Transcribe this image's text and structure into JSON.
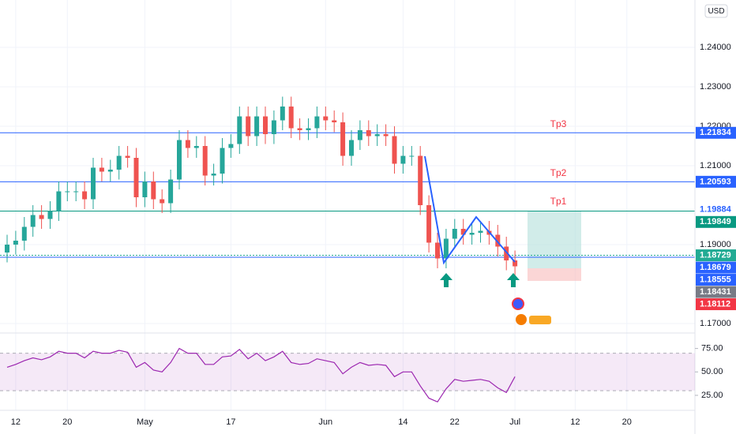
{
  "chart_data": {
    "type": "candlestick",
    "currency": "USD",
    "categories": [
      null,
      "12",
      null,
      null,
      null,
      null,
      null,
      "20",
      null,
      null,
      null,
      null,
      null,
      null,
      null,
      null,
      "May",
      null,
      null,
      null,
      null,
      null,
      null,
      null,
      null,
      null,
      "17",
      null,
      null,
      null,
      null,
      null,
      null,
      null,
      null,
      null,
      null,
      "Jun",
      null,
      null,
      null,
      null,
      null,
      null,
      null,
      null,
      "14",
      null,
      null,
      null,
      null,
      null,
      "22",
      null,
      null,
      null,
      null,
      null,
      null,
      "Jul",
      null,
      null,
      null,
      null,
      null,
      null,
      "12",
      null,
      null,
      null,
      null,
      null,
      "20",
      null,
      null,
      null,
      null,
      null
    ],
    "open": [
      1.188,
      1.19,
      1.191,
      1.1945,
      1.1975,
      1.1965,
      1.1985,
      1.2035,
      1.2035,
      1.2035,
      1.2015,
      1.2095,
      1.2085,
      1.209,
      1.2125,
      1.212,
      1.202,
      1.206,
      1.2015,
      1.2005,
      1.2065,
      1.2165,
      1.2145,
      1.215,
      1.2075,
      1.208,
      1.2145,
      1.2155,
      1.2225,
      1.2175,
      1.2225,
      1.218,
      1.2215,
      1.225,
      1.2195,
      1.219,
      1.2195,
      1.2225,
      1.2215,
      1.221,
      1.2125,
      1.2165,
      1.219,
      1.2175,
      1.218,
      1.2175,
      1.2105,
      1.2125,
      1.2125,
      1.2,
      1.1905,
      1.1865,
      1.1915,
      1.194,
      1.1925,
      1.193,
      1.1935,
      1.1925,
      1.1895,
      1.186,
      null,
      null,
      null,
      null,
      null,
      null,
      null,
      null,
      null,
      null,
      null,
      null,
      null,
      null,
      null,
      null,
      null,
      null
    ],
    "high": [
      1.1925,
      1.1935,
      1.197,
      1.2,
      1.2,
      1.201,
      1.206,
      1.206,
      1.206,
      1.206,
      1.212,
      1.212,
      1.2115,
      1.215,
      1.215,
      1.2145,
      1.2085,
      1.2085,
      1.204,
      1.209,
      1.219,
      1.219,
      1.2175,
      1.2175,
      1.2105,
      1.217,
      1.218,
      1.225,
      1.225,
      1.225,
      1.225,
      1.224,
      1.2275,
      1.2275,
      1.222,
      1.222,
      1.225,
      1.225,
      1.224,
      1.2235,
      1.219,
      1.2215,
      1.2215,
      1.2205,
      1.2205,
      1.22,
      1.215,
      1.215,
      1.215,
      1.2025,
      1.193,
      1.194,
      1.1965,
      1.1965,
      1.1955,
      1.196,
      1.196,
      1.195,
      1.192,
      1.1885,
      null,
      null,
      null,
      null,
      null,
      null,
      null,
      null,
      null,
      null,
      null,
      null,
      null,
      null,
      null,
      null,
      null,
      null
    ],
    "low": [
      1.1855,
      1.1875,
      1.1885,
      1.192,
      1.194,
      1.194,
      1.196,
      1.201,
      1.201,
      1.199,
      1.199,
      1.206,
      1.206,
      1.2065,
      1.2095,
      1.1995,
      1.1995,
      1.199,
      1.198,
      1.198,
      1.204,
      1.212,
      1.212,
      1.205,
      1.205,
      1.2055,
      1.212,
      1.213,
      1.215,
      1.215,
      1.2155,
      1.2155,
      1.219,
      1.217,
      1.2165,
      1.2165,
      1.217,
      1.219,
      1.2185,
      1.21,
      1.21,
      1.214,
      1.215,
      1.215,
      1.215,
      1.208,
      1.208,
      1.21,
      1.1975,
      1.188,
      1.184,
      1.184,
      1.189,
      1.19,
      1.19,
      1.1905,
      1.19,
      1.187,
      1.1835,
      1.182,
      null,
      null,
      null,
      null,
      null,
      null,
      null,
      null,
      null,
      null,
      null,
      null,
      null,
      null,
      null,
      null,
      null,
      null
    ],
    "close": [
      1.19,
      1.191,
      1.1945,
      1.1975,
      1.1965,
      1.1985,
      1.2035,
      1.2035,
      1.2035,
      1.2015,
      1.2095,
      1.2085,
      1.209,
      1.2125,
      1.212,
      1.202,
      1.206,
      1.2015,
      1.2005,
      1.2065,
      1.2165,
      1.2145,
      1.215,
      1.2075,
      1.208,
      1.2145,
      1.2155,
      1.2225,
      1.2175,
      1.2225,
      1.218,
      1.2215,
      1.225,
      1.2195,
      1.219,
      1.2195,
      1.2225,
      1.2215,
      1.221,
      1.2125,
      1.2165,
      1.219,
      1.2175,
      1.218,
      1.2175,
      1.2105,
      1.2125,
      1.2125,
      1.2,
      1.1905,
      1.1865,
      1.1915,
      1.194,
      1.1925,
      1.193,
      1.1935,
      1.1925,
      1.1895,
      1.186,
      1.1845,
      null,
      null,
      null,
      null,
      null,
      null,
      null,
      null,
      null,
      null,
      null,
      null,
      null,
      null,
      null,
      null,
      null,
      null
    ],
    "up_color": "#26a69a",
    "down_color": "#ef5350",
    "ylim": [
      1.168,
      1.252
    ],
    "yticks": [
      {
        "value": 1.17,
        "label": "1.17000"
      },
      {
        "value": 1.19,
        "label": "1.19000"
      },
      {
        "value": 1.21,
        "label": "1.21000"
      },
      {
        "value": 1.22,
        "label": "1.22000"
      },
      {
        "value": 1.23,
        "label": "1.23000"
      },
      {
        "value": 1.24,
        "label": "1.24000"
      }
    ],
    "price_labels": [
      {
        "value": 1.21834,
        "color": "#2962ff",
        "line": "solid"
      },
      {
        "value": 1.20593,
        "color": "#2962ff",
        "line": "solid"
      },
      {
        "value": 1.19884,
        "color": "#2962ff",
        "filled": false
      },
      {
        "value": 1.19849,
        "color": "#089981",
        "line": "solid"
      },
      {
        "value": 1.18729,
        "color": "#22ab94",
        "line": "dotted"
      },
      {
        "value": 1.18679,
        "color": "#2962ff",
        "line": "solid"
      },
      {
        "value": 1.18555,
        "color": "#2962ff"
      },
      {
        "value": 1.18431,
        "color": "#787b86"
      },
      {
        "value": 1.18112,
        "color": "#f23645"
      }
    ],
    "annotations": [
      "Tp3",
      "Tp2",
      "Tp1"
    ],
    "rsi": {
      "values": [
        55,
        58,
        62,
        65,
        63,
        66,
        72,
        70,
        70,
        65,
        72,
        70,
        70,
        73,
        71,
        55,
        60,
        52,
        50,
        60,
        75,
        70,
        70,
        58,
        58,
        66,
        67,
        74,
        64,
        70,
        62,
        66,
        72,
        60,
        58,
        59,
        64,
        62,
        60,
        48,
        55,
        60,
        57,
        58,
        57,
        45,
        50,
        50,
        35,
        22,
        18,
        32,
        42,
        40,
        41,
        42,
        40,
        33,
        28,
        45,
        null,
        null,
        null,
        null,
        null,
        null,
        null,
        null,
        null,
        null,
        null,
        null,
        null,
        null,
        null,
        null,
        null,
        null
      ],
      "color": "#9c27b0",
      "ylim": [
        9,
        89
      ],
      "yticks": [
        {
          "value": 25,
          "label": "25.00"
        },
        {
          "value": 50,
          "label": "50.00"
        },
        {
          "value": 75,
          "label": "75.00"
        }
      ],
      "band": [
        30,
        70
      ]
    }
  }
}
